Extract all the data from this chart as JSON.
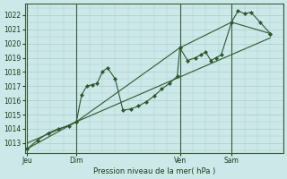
{
  "title": "Pression niveau de la mer( hPa )",
  "bg_color": "#cce8e8",
  "grid_color": "#aacccc",
  "line_color": "#2d5a2d",
  "ylim": [
    1012.3,
    1022.8
  ],
  "yticks": [
    1013,
    1014,
    1015,
    1016,
    1017,
    1018,
    1019,
    1020,
    1021,
    1022
  ],
  "xlim": [
    0,
    200
  ],
  "xtick_labels": [
    "Jeu",
    "Dim",
    "Ven",
    "Sam"
  ],
  "xtick_positions": [
    2,
    40,
    120,
    160
  ],
  "vline_positions": [
    2,
    40,
    120,
    160
  ],
  "series1": [
    [
      2,
      1012.6
    ],
    [
      10,
      1013.2
    ],
    [
      18,
      1013.7
    ],
    [
      26,
      1014.0
    ],
    [
      34,
      1014.2
    ],
    [
      40,
      1014.5
    ],
    [
      44,
      1016.4
    ],
    [
      48,
      1017.0
    ],
    [
      52,
      1017.1
    ],
    [
      56,
      1017.2
    ],
    [
      60,
      1018.0
    ],
    [
      64,
      1018.3
    ],
    [
      70,
      1017.5
    ],
    [
      76,
      1015.3
    ],
    [
      82,
      1015.4
    ],
    [
      88,
      1015.6
    ],
    [
      94,
      1015.9
    ],
    [
      100,
      1016.3
    ],
    [
      106,
      1016.8
    ],
    [
      112,
      1017.2
    ],
    [
      118,
      1017.7
    ],
    [
      120,
      1019.7
    ],
    [
      126,
      1018.8
    ],
    [
      132,
      1019.0
    ],
    [
      136,
      1019.2
    ],
    [
      140,
      1019.4
    ],
    [
      144,
      1018.8
    ],
    [
      148,
      1019.0
    ],
    [
      152,
      1019.2
    ],
    [
      160,
      1021.5
    ],
    [
      165,
      1022.3
    ],
    [
      170,
      1022.1
    ],
    [
      175,
      1022.2
    ],
    [
      182,
      1021.5
    ],
    [
      190,
      1020.7
    ]
  ],
  "series2": [
    [
      2,
      1012.6
    ],
    [
      40,
      1014.5
    ],
    [
      120,
      1019.7
    ],
    [
      160,
      1021.5
    ],
    [
      190,
      1020.7
    ]
  ],
  "series3": [
    [
      2,
      1013.0
    ],
    [
      190,
      1020.4
    ]
  ]
}
